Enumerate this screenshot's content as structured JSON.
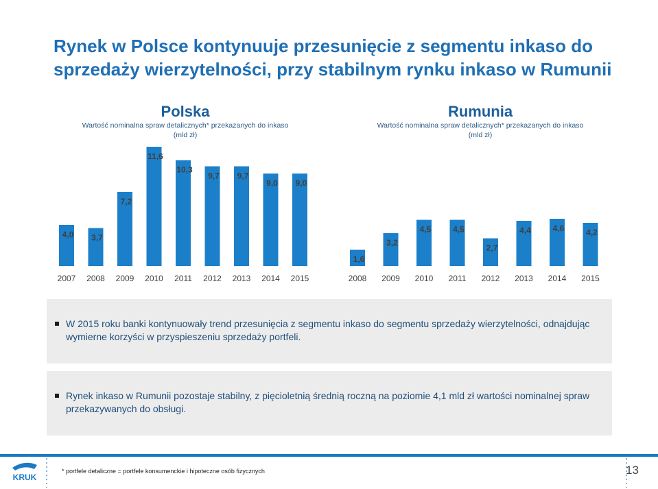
{
  "title": "Rynek w Polsce kontynuuje przesunięcie z segmentu inkaso do sprzedaży wierzytelności, przy stabilnym rynku inkaso w Rumunii",
  "chart_data": [
    {
      "type": "bar",
      "title": "Polska",
      "subtitle": "Wartość nominalna spraw detalicznych* przekazanych do inkaso (mld zł)",
      "categories": [
        "2007",
        "2008",
        "2009",
        "2010",
        "2011",
        "2012",
        "2013",
        "2014",
        "2015"
      ],
      "values": [
        4.0,
        3.7,
        7.2,
        11.6,
        10.3,
        9.7,
        9.7,
        9.0,
        9.0
      ],
      "labels": [
        "4,0",
        "3,7",
        "7,2",
        "11,6",
        "10,3",
        "9,7",
        "9,7",
        "9,0",
        "9,0"
      ],
      "color": "#1c7fc9"
    },
    {
      "type": "bar",
      "title": "Rumunia",
      "subtitle": "Wartość nominalna spraw detalicznych* przekazanych do inkaso (mld zł)",
      "categories": [
        "2008",
        "2009",
        "2010",
        "2011",
        "2012",
        "2013",
        "2014",
        "2015"
      ],
      "values": [
        1.6,
        3.2,
        4.5,
        4.5,
        2.7,
        4.4,
        4.6,
        4.2
      ],
      "labels": [
        "1,6",
        "3,2",
        "4,5",
        "4,5",
        "2,7",
        "4,4",
        "4,6",
        "4,2"
      ],
      "color": "#1c7fc9"
    }
  ],
  "bullets": [
    "W 2015 roku banki kontynuowały trend przesunięcia z segmentu inkaso do segmentu sprzedaży wierzytelności, odnajdując wymierne korzyści w przyspieszeniu sprzedaży portfeli.",
    "Rynek inkaso w Rumunii pozostaje stabilny, z pięcioletnią średnią roczną na poziomie 4,1 mld zł wartości nominalnej spraw przekazywanych do obsługi."
  ],
  "footnote": "* portfele detaliczne = portfele konsumenckie i hipoteczne osób fizycznych",
  "page_number": "13",
  "logo_text": "KRUK"
}
